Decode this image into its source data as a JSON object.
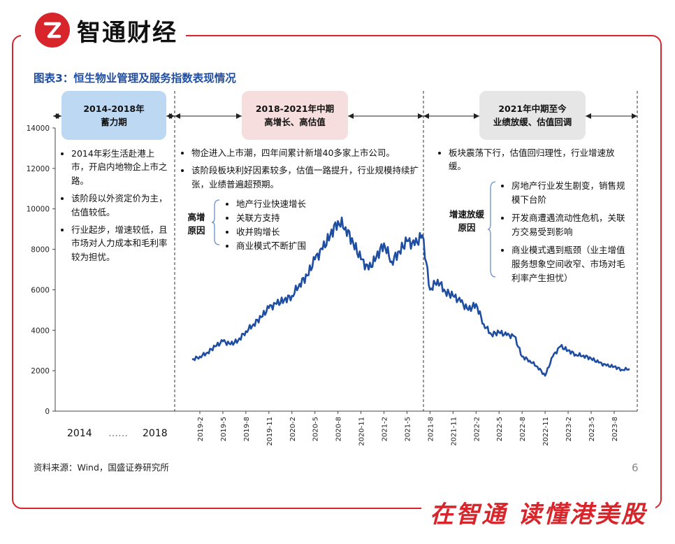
{
  "brand": {
    "name": "智通财经",
    "slogan": "在智通 读懂港美股",
    "logo_icon": "zhitong-logo-icon",
    "accent": "#d7252b"
  },
  "figure_title": "图表3：恒生物业管理及服务指数表现情况",
  "source": "资料来源：Wind，国盛证券研究所",
  "page_number": "6",
  "phases": [
    {
      "title": "2014-2018年",
      "subtitle": "蓄力期",
      "color": "#bcd8f3"
    },
    {
      "title": "2018-2021年中期",
      "subtitle": "高增长、高估值",
      "color": "#f7dede"
    },
    {
      "title": "2021年中期至今",
      "subtitle": "业绩放缓、估值回调",
      "color": "#e6e6e6"
    }
  ],
  "phase1_notes": [
    "2014年彩生活赴港上市，开启内地物企上市之路。",
    "该阶段以外资定价为主，估值较低。",
    "行业起步，增速较低，且市场对人力成本和毛利率较为担忧。"
  ],
  "phase2_notes": [
    "物企进入上市潮，四年间累计新增40多家上市公司。",
    "该阶段板块利好因素较多，估值一路提升，行业规模持续扩张，业绩普遍超预期。"
  ],
  "phase2_reasons": {
    "label": "高增原因",
    "items": [
      "地产行业快速增长",
      "关联方支持",
      "收并购增长",
      "商业模式不断扩围"
    ]
  },
  "phase3_notes": [
    "板块震荡下行，估值回归理性，行业增速放缓。"
  ],
  "phase3_reasons": {
    "label": "增速放缓原因",
    "items": [
      "房地产行业发生剧变，销售规模下台阶",
      "开发商遭遇流动性危机，关联方交易受到影响",
      "商业模式遇到瓶颈（业主增值服务想象空间收窄、市场对毛利率产生担忧）"
    ]
  },
  "left_axis_years": {
    "start": "2014",
    "dots": "……",
    "end": "2018"
  },
  "chart_data": {
    "type": "line",
    "title": "",
    "xlabel": "",
    "ylabel": "",
    "ylim": [
      0,
      14000
    ],
    "yticks": [
      0,
      2000,
      4000,
      6000,
      8000,
      10000,
      12000,
      14000
    ],
    "xticks": [
      "2019-2",
      "2019-5",
      "2019-8",
      "2019-11",
      "2020-2",
      "2020-5",
      "2020-8",
      "2020-11",
      "2021-2",
      "2021-5",
      "2021-8",
      "2021-11",
      "2022-2",
      "2022-5",
      "2022-8",
      "2022-11",
      "2023-2",
      "2023-5",
      "2023-8"
    ],
    "line_color": "#1f4ea1",
    "series": [
      {
        "name": "",
        "points": [
          [
            "2019-1",
            2550
          ],
          [
            "2019-2",
            2700
          ],
          [
            "2019-3",
            2900
          ],
          [
            "2019-4",
            3200
          ],
          [
            "2019-5",
            3450
          ],
          [
            "2019-6",
            3300
          ],
          [
            "2019-7",
            3500
          ],
          [
            "2019-8",
            3950
          ],
          [
            "2019-9",
            4300
          ],
          [
            "2019-10",
            4650
          ],
          [
            "2019-11",
            5100
          ],
          [
            "2019-12",
            5300
          ],
          [
            "2020-1",
            5500
          ],
          [
            "2020-2",
            5700
          ],
          [
            "2020-3",
            6300
          ],
          [
            "2020-4",
            6700
          ],
          [
            "2020-5",
            7500
          ],
          [
            "2020-6",
            8000
          ],
          [
            "2020-7",
            8700
          ],
          [
            "2020-8",
            9400
          ],
          [
            "2020-9",
            9100
          ],
          [
            "2020-10",
            8300
          ],
          [
            "2020-11",
            7500
          ],
          [
            "2020-12",
            7000
          ],
          [
            "2021-1",
            7600
          ],
          [
            "2021-2",
            8300
          ],
          [
            "2021-3",
            7400
          ],
          [
            "2021-4",
            7900
          ],
          [
            "2021-5",
            8400
          ],
          [
            "2021-6",
            8200
          ],
          [
            "2021-7",
            8700
          ],
          [
            "2021-8",
            6000
          ],
          [
            "2021-9",
            6500
          ],
          [
            "2021-10",
            5900
          ],
          [
            "2021-11",
            5700
          ],
          [
            "2021-12",
            5400
          ],
          [
            "2022-1",
            5000
          ],
          [
            "2022-2",
            5300
          ],
          [
            "2022-3",
            4300
          ],
          [
            "2022-4",
            3800
          ],
          [
            "2022-5",
            3900
          ],
          [
            "2022-6",
            3750
          ],
          [
            "2022-7",
            3700
          ],
          [
            "2022-8",
            2700
          ],
          [
            "2022-9",
            2500
          ],
          [
            "2022-10",
            2200
          ],
          [
            "2022-11",
            1750
          ],
          [
            "2022-12",
            2700
          ],
          [
            "2023-1",
            3200
          ],
          [
            "2023-2",
            3000
          ],
          [
            "2023-3",
            2800
          ],
          [
            "2023-4",
            2750
          ],
          [
            "2023-5",
            2600
          ],
          [
            "2023-6",
            2400
          ],
          [
            "2023-7",
            2250
          ],
          [
            "2023-8",
            2200
          ],
          [
            "2023-9",
            2050
          ],
          [
            "2023-10",
            2100
          ]
        ]
      }
    ]
  }
}
